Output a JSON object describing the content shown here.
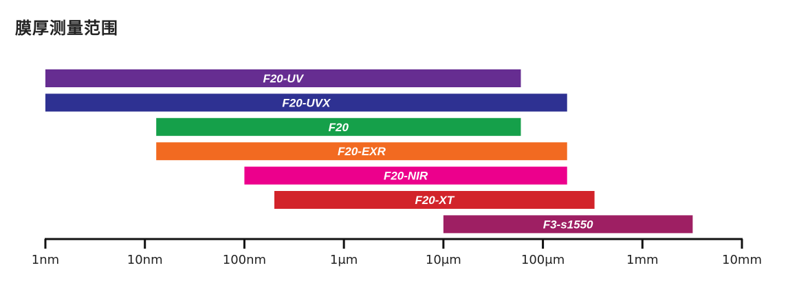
{
  "chart_data": {
    "type": "bar",
    "orientation": "horizontal-range",
    "title": "膜厚测量范围",
    "x_scale": "log",
    "x_unit": "nm",
    "xlim": [
      1,
      10000000
    ],
    "x_ticks": [
      {
        "label": "1nm",
        "value": 1
      },
      {
        "label": "10nm",
        "value": 10
      },
      {
        "label": "100nm",
        "value": 100
      },
      {
        "label": "1μm",
        "value": 1000
      },
      {
        "label": "10μm",
        "value": 10000
      },
      {
        "label": "100μm",
        "value": 100000
      },
      {
        "label": "1mm",
        "value": 1000000
      },
      {
        "label": "10mm",
        "value": 10000000
      }
    ],
    "series": [
      {
        "name": "F20-UV",
        "min": 1,
        "max": 60000,
        "color": "#662d91"
      },
      {
        "name": "F20-UVX",
        "min": 1,
        "max": 175000,
        "color": "#2e3192"
      },
      {
        "name": "F20",
        "min": 13,
        "max": 60000,
        "color": "#15a04a"
      },
      {
        "name": "F20-EXR",
        "min": 13,
        "max": 175000,
        "color": "#f26a21"
      },
      {
        "name": "F20-NIR",
        "min": 100,
        "max": 175000,
        "color": "#ec008c"
      },
      {
        "name": "F20-XT",
        "min": 200,
        "max": 330000,
        "color": "#d2232a"
      },
      {
        "name": "F3-s1550",
        "min": 10000,
        "max": 3200000,
        "color": "#9e1f63"
      }
    ],
    "grid": false,
    "legend": "none"
  }
}
